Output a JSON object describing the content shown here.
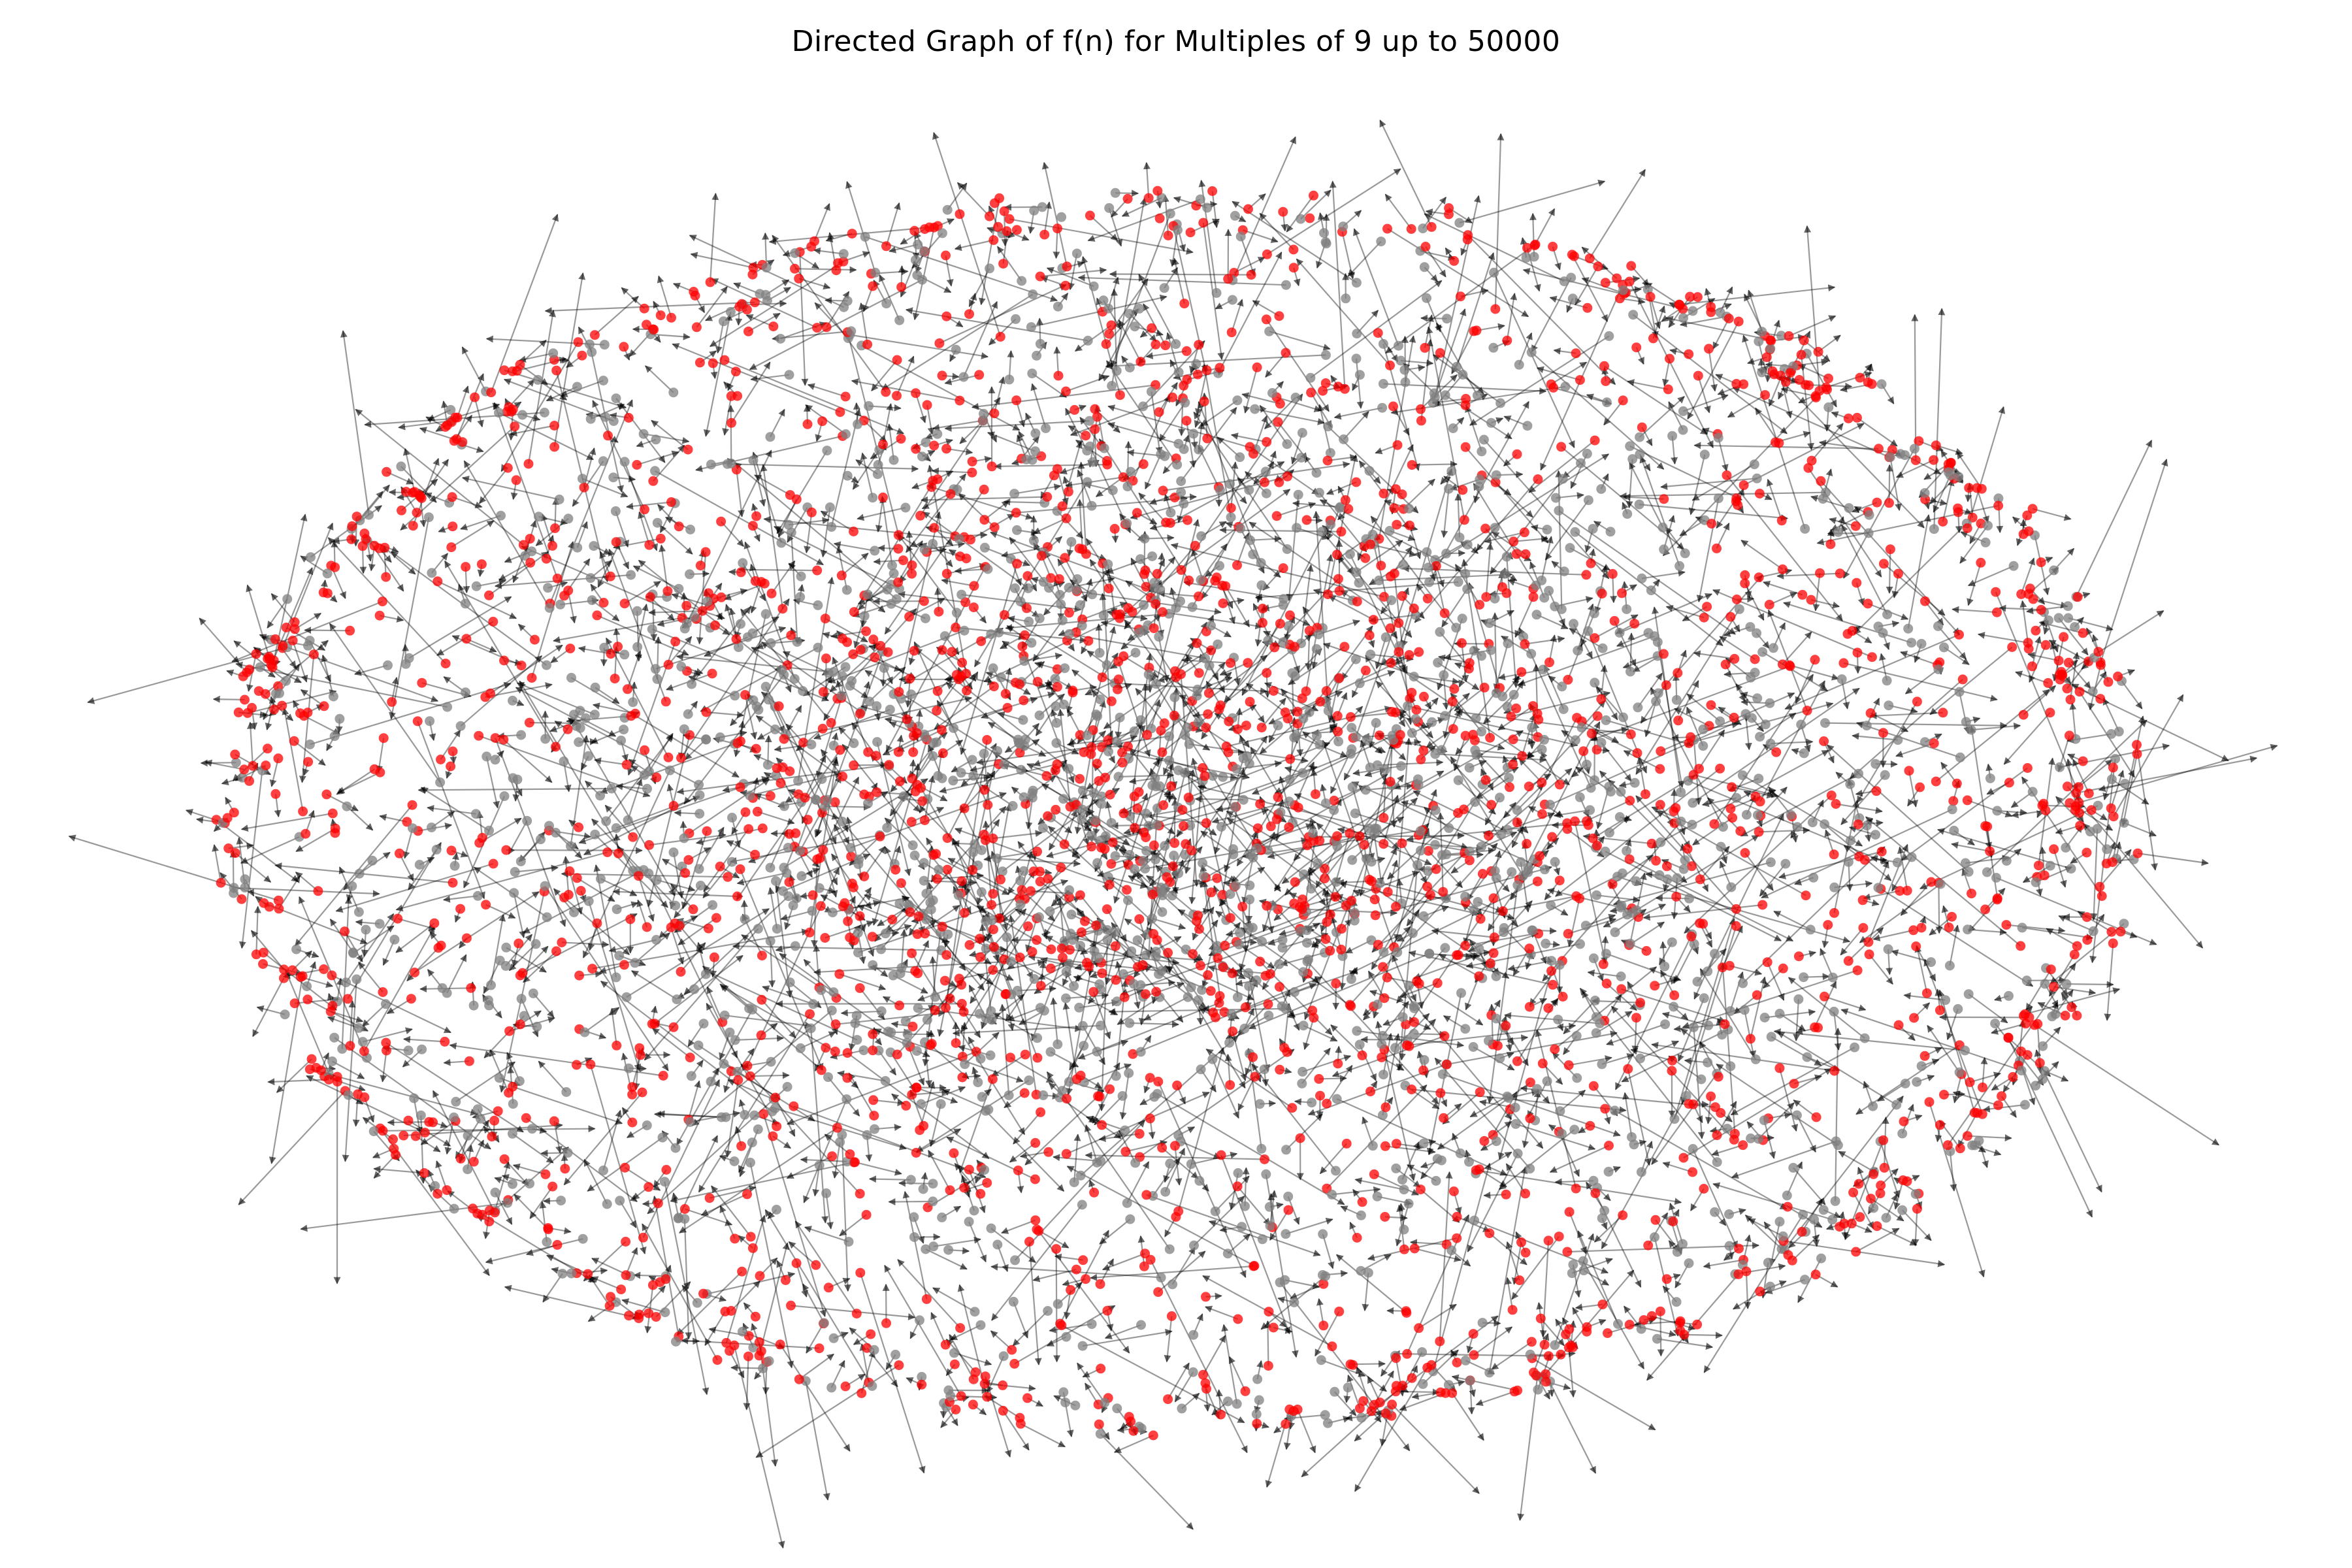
{
  "figure": {
    "title": "Directed Graph of f(n) for Multiples of 9 up to 50000"
  },
  "graph": {
    "type": "directed-network",
    "node_colors": {
      "highlighted": "#ff0000",
      "regular": "#808080"
    },
    "edge_color": "#000000",
    "edge_opacity": 0.4,
    "node_opacity": 0.75,
    "axes_visible": false,
    "legend": "none"
  }
}
